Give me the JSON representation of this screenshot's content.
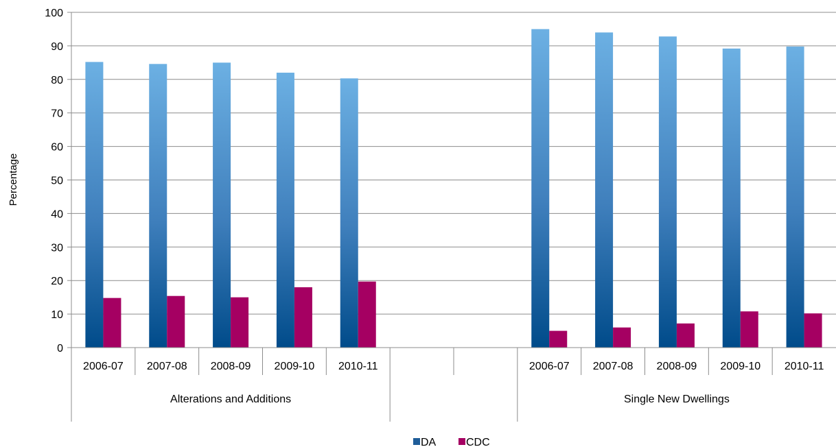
{
  "chart_data": {
    "type": "bar",
    "ylabel": "Percentage",
    "ylim": [
      0,
      100
    ],
    "yticks": [
      0,
      10,
      20,
      30,
      40,
      50,
      60,
      70,
      80,
      90,
      100
    ],
    "grid": true,
    "legend_position": "bottom-center",
    "groups": [
      {
        "label": "Alterations and Additions",
        "categories": [
          "2006-07",
          "2007-08",
          "2008-09",
          "2009-10",
          "2010-11"
        ]
      },
      {
        "label": "",
        "categories": [
          "",
          ""
        ]
      },
      {
        "label": "Single New Dwellings",
        "categories": [
          "2006-07",
          "2007-08",
          "2008-09",
          "2009-10",
          "2010-11"
        ]
      }
    ],
    "categories": [
      "2006-07",
      "2007-08",
      "2008-09",
      "2009-10",
      "2010-11",
      "",
      "",
      "2006-07",
      "2007-08",
      "2008-09",
      "2009-10",
      "2010-11"
    ],
    "series": [
      {
        "name": "DA",
        "color": "#1f5d99",
        "values": [
          85.2,
          84.6,
          85.0,
          82.0,
          80.3,
          null,
          null,
          95.0,
          94.0,
          92.8,
          89.2,
          89.8
        ]
      },
      {
        "name": "CDC",
        "color": "#a50062",
        "values": [
          14.8,
          15.4,
          15.0,
          18.0,
          19.7,
          null,
          null,
          5.0,
          6.0,
          7.2,
          10.8,
          10.2
        ]
      }
    ]
  }
}
